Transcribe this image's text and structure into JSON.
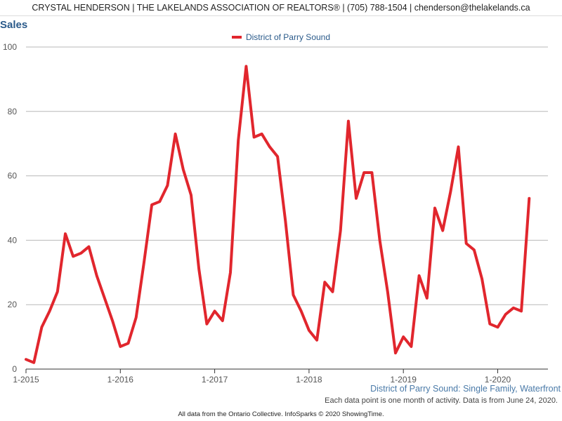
{
  "header": {
    "text": "CRYSTAL HENDERSON | THE LAKELANDS ASSOCIATION OF REALTORS® | (705) 788-1504 | chenderson@thelakelands.ca"
  },
  "colors": {
    "series": "#e1262d",
    "title": "#2a5a8a",
    "subtitle": "#4a7aa8",
    "grid": "#b8b8b8"
  },
  "subtitle": "District of Parry Sound: Single Family, Waterfront",
  "note": "Each data point is one month of activity. Data is from June 24, 2020.",
  "footer": "All data from the Ontario Collective. InfoSparks © 2020 ShowingTime.",
  "chart_data": {
    "type": "line",
    "title": "Sales",
    "ylim": [
      0,
      100
    ],
    "yticks": [
      0,
      20,
      40,
      60,
      80,
      100
    ],
    "xticks": [
      "1-2015",
      "1-2016",
      "1-2017",
      "1-2018",
      "1-2019",
      "1-2020"
    ],
    "grid": true,
    "legend_position": "top-center",
    "series": [
      {
        "name": "District of Parry Sound",
        "x": [
          "2015-01",
          "2015-02",
          "2015-03",
          "2015-04",
          "2015-05",
          "2015-06",
          "2015-07",
          "2015-08",
          "2015-09",
          "2015-10",
          "2015-11",
          "2015-12",
          "2016-01",
          "2016-02",
          "2016-03",
          "2016-04",
          "2016-05",
          "2016-06",
          "2016-07",
          "2016-08",
          "2016-09",
          "2016-10",
          "2016-11",
          "2016-12",
          "2017-01",
          "2017-02",
          "2017-03",
          "2017-04",
          "2017-05",
          "2017-06",
          "2017-07",
          "2017-08",
          "2017-09",
          "2017-10",
          "2017-11",
          "2017-12",
          "2018-01",
          "2018-02",
          "2018-03",
          "2018-04",
          "2018-05",
          "2018-06",
          "2018-07",
          "2018-08",
          "2018-09",
          "2018-10",
          "2018-11",
          "2018-12",
          "2019-01",
          "2019-02",
          "2019-03",
          "2019-04",
          "2019-05",
          "2019-06",
          "2019-07",
          "2019-08",
          "2019-09",
          "2019-10",
          "2019-11",
          "2019-12",
          "2020-01",
          "2020-02",
          "2020-03",
          "2020-04",
          "2020-05"
        ],
        "values": [
          3,
          2,
          13,
          18,
          24,
          42,
          35,
          36,
          38,
          29,
          22,
          15,
          7,
          8,
          16,
          33,
          51,
          52,
          57,
          73,
          62,
          54,
          31,
          14,
          18,
          15,
          30,
          71,
          94,
          72,
          73,
          69,
          66,
          46,
          23,
          18,
          12,
          9,
          27,
          24,
          43,
          77,
          53,
          61,
          61,
          40,
          24,
          5,
          10,
          7,
          29,
          22,
          50,
          43,
          55,
          69,
          39,
          37,
          28,
          14,
          13,
          17,
          19,
          18,
          53
        ]
      }
    ]
  }
}
